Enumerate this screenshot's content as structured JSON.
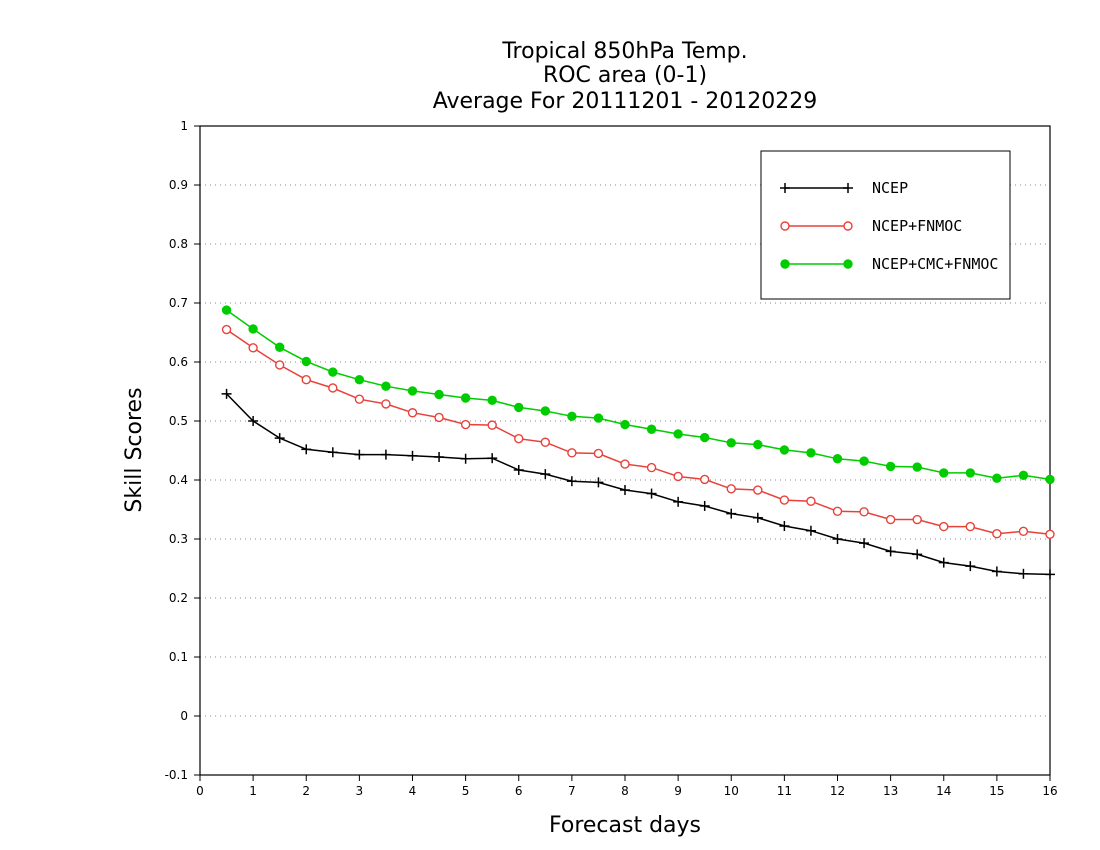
{
  "chart_data": {
    "type": "line",
    "title_lines": [
      "Tropical 850hPa Temp.",
      "ROC area (0-1)",
      "Average For 20111201 - 20120229"
    ],
    "xlabel": "Forecast days",
    "ylabel": "Skill Scores",
    "xlim": [
      0,
      16
    ],
    "ylim": [
      -0.1,
      1
    ],
    "xticks": [
      "0",
      "1",
      "2",
      "3",
      "4",
      "5",
      "6",
      "7",
      "8",
      "9",
      "10",
      "11",
      "12",
      "13",
      "14",
      "15",
      "16"
    ],
    "yticks": [
      "-0.1",
      "0",
      "0.1",
      "0.2",
      "0.3",
      "0.4",
      "0.5",
      "0.6",
      "0.7",
      "0.8",
      "0.9",
      "1"
    ],
    "grid": "horizontal dotted",
    "legend_position": "top-right",
    "x": [
      0.5,
      1.0,
      1.5,
      2.0,
      2.5,
      3.0,
      3.5,
      4.0,
      4.5,
      5.0,
      5.5,
      6.0,
      6.5,
      7.0,
      7.5,
      8.0,
      8.5,
      9.0,
      9.5,
      10.0,
      10.5,
      11.0,
      11.5,
      12.0,
      12.5,
      13.0,
      13.5,
      14.0,
      14.5,
      15.0,
      15.5,
      16.0
    ],
    "series": [
      {
        "name": "NCEP",
        "color": "#000000",
        "marker": "plus",
        "values": [
          0.546,
          0.5,
          0.471,
          0.452,
          0.447,
          0.443,
          0.443,
          0.441,
          0.439,
          0.436,
          0.437,
          0.417,
          0.41,
          0.398,
          0.396,
          0.383,
          0.377,
          0.363,
          0.356,
          0.343,
          0.336,
          0.322,
          0.314,
          0.3,
          0.293,
          0.279,
          0.274,
          0.26,
          0.254,
          0.245,
          0.241,
          0.24
        ]
      },
      {
        "name": "NCEP+FNMOC",
        "color": "#e8413a",
        "marker": "open-circle",
        "values": [
          0.655,
          0.624,
          0.595,
          0.57,
          0.556,
          0.537,
          0.529,
          0.514,
          0.506,
          0.494,
          0.493,
          0.47,
          0.464,
          0.446,
          0.445,
          0.427,
          0.421,
          0.406,
          0.401,
          0.385,
          0.383,
          0.366,
          0.364,
          0.347,
          0.346,
          0.333,
          0.333,
          0.321,
          0.321,
          0.309,
          0.313,
          0.308
        ]
      },
      {
        "name": "NCEP+CMC+FNMOC",
        "color": "#00cc00",
        "marker": "filled-circle",
        "values": [
          0.688,
          0.656,
          0.625,
          0.601,
          0.583,
          0.57,
          0.559,
          0.551,
          0.545,
          0.539,
          0.535,
          0.523,
          0.517,
          0.508,
          0.505,
          0.494,
          0.486,
          0.478,
          0.472,
          0.463,
          0.46,
          0.451,
          0.446,
          0.436,
          0.432,
          0.423,
          0.422,
          0.412,
          0.412,
          0.403,
          0.408,
          0.401
        ]
      }
    ]
  }
}
